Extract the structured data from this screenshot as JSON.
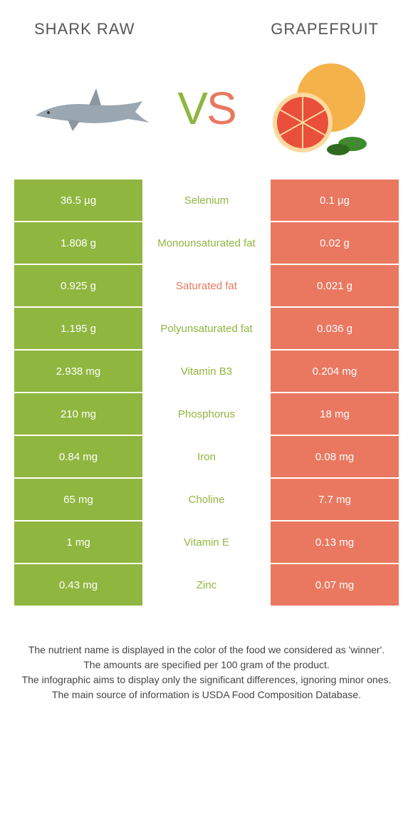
{
  "colors": {
    "left_bg": "#8fb63f",
    "right_bg": "#ea7860",
    "mid_bg": "#ffffff",
    "cell_text": "#ffffff"
  },
  "header": {
    "left_title": "SHARK RAW",
    "right_title": "GRAPEFRUIT",
    "vs_v": "V",
    "vs_s": "S"
  },
  "rows": [
    {
      "left": "36.5 µg",
      "mid": "Selenium",
      "right": "0.1 µg",
      "winner": "left"
    },
    {
      "left": "1.808 g",
      "mid": "Monounsaturated fat",
      "right": "0.02 g",
      "winner": "left"
    },
    {
      "left": "0.925 g",
      "mid": "Saturated fat",
      "right": "0.021 g",
      "winner": "right"
    },
    {
      "left": "1.195 g",
      "mid": "Polyunsaturated fat",
      "right": "0.036 g",
      "winner": "left"
    },
    {
      "left": "2.938 mg",
      "mid": "Vitamin B3",
      "right": "0.204 mg",
      "winner": "left"
    },
    {
      "left": "210 mg",
      "mid": "Phosphorus",
      "right": "18 mg",
      "winner": "left"
    },
    {
      "left": "0.84 mg",
      "mid": "Iron",
      "right": "0.08 mg",
      "winner": "left"
    },
    {
      "left": "65 mg",
      "mid": "Choline",
      "right": "7.7 mg",
      "winner": "left"
    },
    {
      "left": "1 mg",
      "mid": "Vitamin E",
      "right": "0.13 mg",
      "winner": "left"
    },
    {
      "left": "0.43 mg",
      "mid": "Zinc",
      "right": "0.07 mg",
      "winner": "left"
    }
  ],
  "footer": {
    "line1": "The nutrient name is displayed in the color of the food we considered as 'winner'.",
    "line2": "The amounts are specified per 100 gram of the product.",
    "line3": "The infographic aims to display only the significant differences, ignoring minor ones.",
    "line4": "The main source of information is USDA Food Composition Database."
  }
}
